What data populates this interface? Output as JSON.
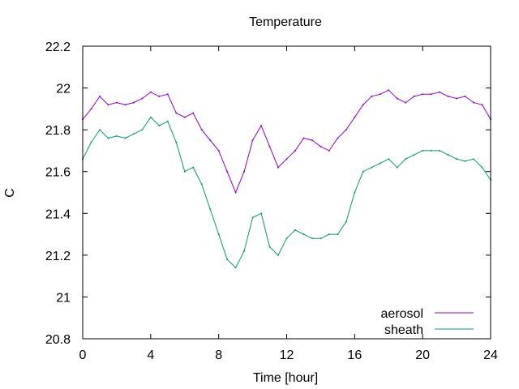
{
  "chart_data": {
    "type": "line",
    "title": "Temperature",
    "xlabel": "Time [hour]",
    "ylabel": "C",
    "xlim": [
      0,
      24
    ],
    "ylim": [
      20.8,
      22.2
    ],
    "x_ticks": [
      0,
      4,
      8,
      12,
      16,
      20,
      24
    ],
    "y_ticks": [
      20.8,
      21,
      21.2,
      21.4,
      21.6,
      21.8,
      22,
      22.2
    ],
    "x_tick_labels": [
      "0",
      "4",
      "8",
      "12",
      "16",
      "20",
      "24"
    ],
    "y_tick_labels": [
      "20.8",
      "21",
      "21.2",
      "21.4",
      "21.6",
      "21.8",
      "22",
      "22.2"
    ],
    "grid": false,
    "legend_position": "bottom-right",
    "series": [
      {
        "name": "aerosol",
        "color": "#9400d3",
        "x": [
          0,
          0.5,
          1,
          1.5,
          2,
          2.5,
          3,
          3.5,
          4,
          4.5,
          5,
          5.5,
          6,
          6.5,
          7,
          7.5,
          8,
          8.5,
          9,
          9.5,
          10,
          10.5,
          11,
          11.5,
          12,
          12.5,
          13,
          13.5,
          14,
          14.5,
          15,
          15.5,
          16,
          16.5,
          17,
          17.5,
          18,
          18.5,
          19,
          19.5,
          20,
          20.5,
          21,
          21.5,
          22,
          22.5,
          23,
          23.5,
          24
        ],
        "values": [
          21.85,
          21.9,
          21.96,
          21.92,
          21.93,
          21.92,
          21.93,
          21.95,
          21.98,
          21.96,
          21.97,
          21.88,
          21.86,
          21.88,
          21.8,
          21.75,
          21.7,
          21.6,
          21.5,
          21.6,
          21.75,
          21.82,
          21.72,
          21.62,
          21.66,
          21.7,
          21.76,
          21.75,
          21.72,
          21.7,
          21.76,
          21.8,
          21.86,
          21.92,
          21.96,
          21.97,
          21.99,
          21.95,
          21.93,
          21.96,
          21.97,
          21.97,
          21.98,
          21.96,
          21.95,
          21.96,
          21.93,
          21.92,
          21.85
        ]
      },
      {
        "name": "sheath",
        "color": "#009e73",
        "x": [
          0,
          0.5,
          1,
          1.5,
          2,
          2.5,
          3,
          3.5,
          4,
          4.5,
          5,
          5.5,
          6,
          6.5,
          7,
          7.5,
          8,
          8.5,
          9,
          9.5,
          10,
          10.5,
          11,
          11.5,
          12,
          12.5,
          13,
          13.5,
          14,
          14.5,
          15,
          15.5,
          16,
          16.5,
          17,
          17.5,
          18,
          18.5,
          19,
          19.5,
          20,
          20.5,
          21,
          21.5,
          22,
          22.5,
          23,
          23.5,
          24
        ],
        "values": [
          21.66,
          21.74,
          21.8,
          21.76,
          21.77,
          21.76,
          21.78,
          21.8,
          21.86,
          21.82,
          21.84,
          21.74,
          21.6,
          21.62,
          21.54,
          21.42,
          21.3,
          21.18,
          21.14,
          21.22,
          21.38,
          21.4,
          21.24,
          21.2,
          21.28,
          21.32,
          21.3,
          21.28,
          21.28,
          21.3,
          21.3,
          21.36,
          21.5,
          21.6,
          21.62,
          21.64,
          21.66,
          21.62,
          21.66,
          21.68,
          21.7,
          21.7,
          21.7,
          21.68,
          21.66,
          21.65,
          21.66,
          21.62,
          21.56
        ]
      }
    ]
  }
}
